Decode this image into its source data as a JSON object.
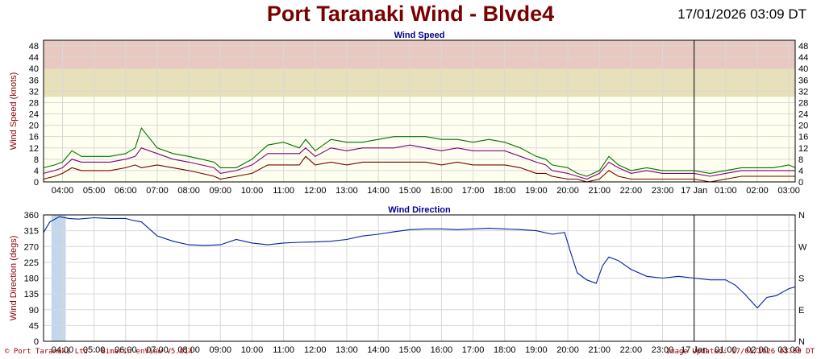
{
  "title": "Port Taranaki Wind - Blvde4",
  "datetime": "17/01/2026 03:09 DT",
  "footer": {
    "left": "© Port Taranaki Ltd - Bimarin enView V5.014",
    "right": "Image Updated: 17/01/2026 03:09 DT"
  },
  "colors": {
    "band_upper": "#e8c8c0",
    "band_middle": "#e8e0b8",
    "band_lower": "#fffff0",
    "grid": "#d8d8d8",
    "speed_gust": "#007000",
    "speed_avg": "#800080",
    "speed_min": "#700000",
    "direction": "#00209a",
    "shade": "#a8c4e4"
  },
  "time_labels": [
    "04:00",
    "05:00",
    "06:00",
    "07:00",
    "08:00",
    "09:00",
    "10:00",
    "11:00",
    "12:00",
    "13:00",
    "14:00",
    "15:00",
    "16:00",
    "17:00",
    "18:00",
    "19:00",
    "20:00",
    "21:00",
    "22:00",
    "23:00",
    "17 Jan",
    "01:00",
    "02:00",
    "03:00"
  ],
  "chart_data": [
    {
      "type": "line",
      "title": "Wind Speed",
      "ylabel": "Wind Speed (knots)",
      "ylim": [
        0,
        50
      ],
      "yticks": [
        0,
        4,
        8,
        12,
        16,
        20,
        24,
        28,
        32,
        36,
        40,
        44,
        48
      ],
      "bands": [
        [
          40,
          50
        ],
        [
          30,
          40
        ],
        [
          0,
          30
        ]
      ],
      "grid": true,
      "x_unit": "hour",
      "x_start": 3.4,
      "x_end": 27.2,
      "marker_at": "17 Jan",
      "x": [
        3.4,
        3.75,
        4,
        4.3,
        4.6,
        5,
        5.5,
        6,
        6.3,
        6.5,
        7,
        7.5,
        8,
        8.4,
        8.8,
        9,
        9.5,
        10,
        10.5,
        11,
        11.5,
        11.7,
        12,
        12.5,
        13,
        13.5,
        14,
        14.5,
        15,
        15.5,
        16,
        16.5,
        17,
        17.5,
        18,
        18.5,
        19,
        19.3,
        19.5,
        20,
        20.3,
        20.6,
        21,
        21.3,
        21.6,
        22,
        22.5,
        23,
        23.5,
        24,
        24.5,
        25,
        25.5,
        26,
        26.5,
        27,
        27.2
      ],
      "series": [
        {
          "role": "gust",
          "values": [
            5,
            6,
            7,
            11,
            9,
            9,
            9,
            10,
            12,
            19,
            12,
            10,
            9,
            8,
            7,
            5,
            5,
            8,
            13,
            14,
            12,
            15,
            11,
            15,
            14,
            14,
            15,
            16,
            16,
            16,
            15,
            15,
            14,
            15,
            14,
            12,
            9,
            8,
            6,
            5,
            3,
            2,
            4,
            9,
            6,
            4,
            5,
            4,
            4,
            4,
            3,
            4,
            5,
            5,
            5,
            6,
            5
          ]
        },
        {
          "role": "avg",
          "values": [
            3,
            4,
            5,
            8,
            7,
            7,
            7,
            8,
            9,
            12,
            10,
            8,
            7,
            6,
            5,
            3,
            4,
            6,
            10,
            10,
            10,
            12,
            9,
            12,
            11,
            12,
            12,
            12,
            13,
            12,
            11,
            12,
            11,
            11,
            11,
            9,
            7,
            6,
            4,
            3,
            2,
            1,
            3,
            7,
            5,
            3,
            4,
            3,
            3,
            3,
            2,
            3,
            4,
            4,
            4,
            4,
            4
          ]
        },
        {
          "role": "min",
          "values": [
            1,
            2,
            3,
            5,
            4,
            4,
            4,
            5,
            6,
            5,
            6,
            5,
            4,
            3,
            2,
            1,
            2,
            3,
            6,
            6,
            6,
            9,
            6,
            7,
            6,
            7,
            7,
            7,
            7,
            7,
            6,
            7,
            6,
            6,
            6,
            5,
            3,
            3,
            2,
            1,
            1,
            0,
            1,
            4,
            2,
            1,
            1,
            1,
            1,
            1,
            0,
            1,
            2,
            2,
            2,
            2,
            2
          ]
        }
      ]
    },
    {
      "type": "line",
      "title": "Wind Direction",
      "ylabel": "Wind Direction (degs)",
      "ylim": [
        0,
        360
      ],
      "yticks": [
        0,
        45,
        90,
        135,
        180,
        225,
        270,
        315,
        360
      ],
      "right_labels": [
        "N",
        "E",
        "S",
        "W",
        "N"
      ],
      "grid": true,
      "x_unit": "hour",
      "x_start": 3.4,
      "x_end": 27.2,
      "marker_at": "17 Jan",
      "shaded_x": [
        3.65,
        4.1
      ],
      "x": [
        3.4,
        3.6,
        3.9,
        4.2,
        4.5,
        5,
        5.5,
        6,
        6.2,
        6.5,
        7,
        7.5,
        8,
        8.5,
        9,
        9.5,
        10,
        10.5,
        11,
        11.5,
        12,
        12.5,
        13,
        13.5,
        14,
        14.5,
        15,
        15.5,
        16,
        16.5,
        17,
        17.5,
        18,
        18.5,
        19,
        19.5,
        19.9,
        20.1,
        20.3,
        20.6,
        20.9,
        21.1,
        21.3,
        21.6,
        22,
        22.5,
        23,
        23.5,
        24,
        24.5,
        25,
        25.3,
        25.6,
        26,
        26.3,
        26.6,
        27,
        27.2
      ],
      "values": [
        310,
        340,
        355,
        350,
        348,
        352,
        350,
        350,
        345,
        340,
        300,
        285,
        275,
        273,
        275,
        290,
        280,
        275,
        280,
        282,
        283,
        285,
        290,
        300,
        305,
        312,
        318,
        320,
        320,
        318,
        320,
        322,
        320,
        318,
        315,
        305,
        310,
        250,
        195,
        175,
        165,
        215,
        240,
        230,
        205,
        185,
        180,
        185,
        180,
        175,
        175,
        160,
        135,
        95,
        125,
        130,
        150,
        155
      ]
    }
  ]
}
